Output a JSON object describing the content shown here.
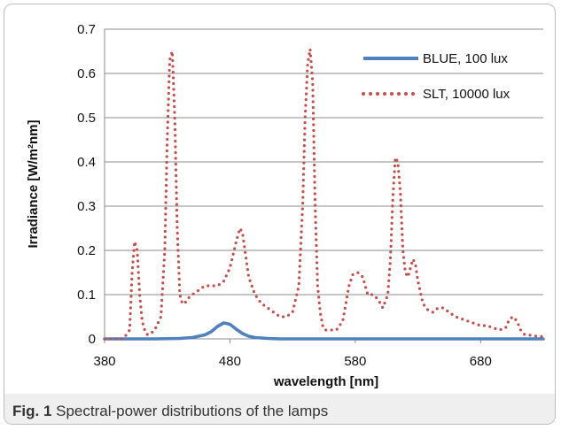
{
  "chart_data": {
    "type": "line",
    "xlabel": "wavelength [nm]",
    "ylabel": "Irradiance [W/m²nm]",
    "xlim": [
      380,
      730
    ],
    "ylim": [
      0,
      0.7
    ],
    "xticks": [
      "380",
      "480",
      "580",
      "680"
    ],
    "yticks": [
      "0",
      "0.1",
      "0.2",
      "0.3",
      "0.4",
      "0.5",
      "0.6",
      "0.7"
    ],
    "grid": "horizontal",
    "legend_position": "top-right",
    "series": [
      {
        "name": "BLUE, 100 lux",
        "style": "solid",
        "color": "#4f81bd",
        "x": [
          380,
          420,
          440,
          450,
          460,
          465,
          470,
          475,
          480,
          485,
          490,
          495,
          500,
          510,
          520,
          540,
          560,
          600,
          650,
          700,
          730
        ],
        "y": [
          0,
          0,
          0.001,
          0.003,
          0.009,
          0.016,
          0.028,
          0.036,
          0.033,
          0.022,
          0.012,
          0.006,
          0.003,
          0.001,
          0,
          0,
          0,
          0,
          0,
          0,
          0
        ]
      },
      {
        "name": "SLT, 10000 lux",
        "style": "dotted",
        "color": "#c0504d",
        "x": [
          380,
          385,
          390,
          395,
          400,
          402,
          404,
          406,
          408,
          410,
          412,
          414,
          416,
          420,
          425,
          428,
          430,
          432,
          434,
          436,
          438,
          440,
          442,
          444,
          446,
          450,
          455,
          460,
          465,
          470,
          475,
          480,
          485,
          488,
          490,
          492,
          495,
          500,
          505,
          510,
          515,
          520,
          525,
          530,
          535,
          538,
          540,
          542,
          544,
          546,
          548,
          550,
          552,
          554,
          556,
          560,
          565,
          570,
          575,
          578,
          582,
          586,
          590,
          594,
          598,
          602,
          606,
          608,
          610,
          612,
          614,
          616,
          618,
          620,
          622,
          624,
          626,
          628,
          630,
          634,
          638,
          642,
          646,
          650,
          655,
          660,
          665,
          670,
          675,
          680,
          685,
          690,
          695,
          700,
          703,
          706,
          709,
          712,
          715,
          720,
          725,
          730
        ],
        "y": [
          0,
          0,
          0,
          0,
          0.02,
          0.15,
          0.22,
          0.2,
          0.1,
          0.04,
          0.02,
          0.01,
          0.01,
          0.02,
          0.05,
          0.2,
          0.45,
          0.63,
          0.65,
          0.5,
          0.25,
          0.1,
          0.08,
          0.08,
          0.09,
          0.1,
          0.11,
          0.12,
          0.12,
          0.12,
          0.13,
          0.16,
          0.22,
          0.25,
          0.24,
          0.2,
          0.14,
          0.1,
          0.08,
          0.07,
          0.06,
          0.05,
          0.05,
          0.06,
          0.12,
          0.3,
          0.5,
          0.62,
          0.655,
          0.58,
          0.3,
          0.12,
          0.06,
          0.03,
          0.02,
          0.02,
          0.02,
          0.04,
          0.12,
          0.145,
          0.15,
          0.14,
          0.1,
          0.1,
          0.09,
          0.07,
          0.1,
          0.18,
          0.32,
          0.41,
          0.4,
          0.33,
          0.2,
          0.15,
          0.14,
          0.16,
          0.18,
          0.17,
          0.13,
          0.08,
          0.065,
          0.06,
          0.07,
          0.07,
          0.06,
          0.05,
          0.045,
          0.04,
          0.035,
          0.03,
          0.03,
          0.025,
          0.02,
          0.025,
          0.045,
          0.05,
          0.04,
          0.02,
          0.01,
          0.008,
          0.006,
          0.005
        ]
      }
    ]
  },
  "caption": {
    "label": "Fig. 1",
    "text": "Spectral-power distributions of the lamps"
  }
}
